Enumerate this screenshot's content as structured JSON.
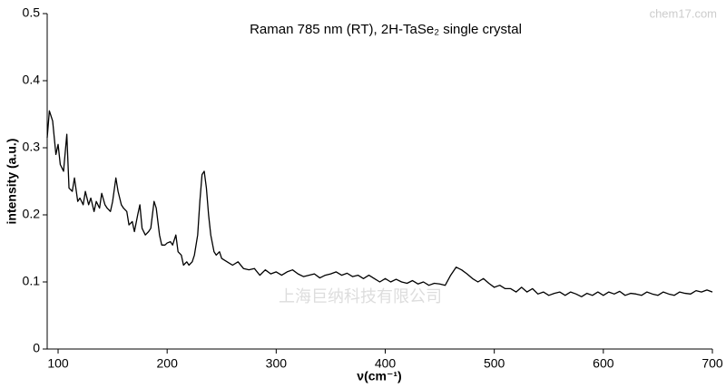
{
  "chart_data": {
    "type": "line",
    "title": "Raman 785 nm (RT), 2H-TaSe₂ single crystal",
    "x_label": "ν(cm⁻¹)",
    "y_label": "intensity (a.u.)",
    "annotations": [
      "chem17.com",
      "上海巨纳科技有限公司"
    ],
    "xlim": [
      90,
      700
    ],
    "xticks": [
      100,
      200,
      300,
      400,
      500,
      600,
      700
    ],
    "ylim": [
      0,
      0.5
    ],
    "yticks": [
      0,
      0.1,
      0.2,
      0.3,
      0.4,
      0.5
    ],
    "grid": false,
    "x": [
      90,
      92,
      95,
      98,
      100,
      102,
      105,
      108,
      110,
      113,
      115,
      118,
      120,
      123,
      125,
      128,
      130,
      133,
      135,
      138,
      140,
      143,
      145,
      148,
      150,
      153,
      155,
      158,
      160,
      163,
      165,
      168,
      170,
      173,
      175,
      177,
      180,
      183,
      185,
      188,
      190,
      193,
      195,
      198,
      200,
      203,
      205,
      208,
      210,
      213,
      215,
      218,
      220,
      223,
      225,
      228,
      230,
      232,
      234,
      236,
      238,
      240,
      243,
      245,
      248,
      250,
      255,
      260,
      265,
      270,
      275,
      280,
      285,
      290,
      295,
      300,
      305,
      310,
      315,
      320,
      325,
      330,
      335,
      340,
      345,
      350,
      355,
      360,
      365,
      370,
      375,
      380,
      385,
      390,
      395,
      400,
      405,
      410,
      415,
      420,
      425,
      430,
      435,
      440,
      445,
      450,
      455,
      460,
      465,
      470,
      475,
      480,
      485,
      490,
      495,
      500,
      505,
      510,
      515,
      520,
      525,
      530,
      535,
      540,
      545,
      550,
      555,
      560,
      565,
      570,
      575,
      580,
      585,
      590,
      595,
      600,
      605,
      610,
      615,
      620,
      625,
      630,
      635,
      640,
      645,
      650,
      655,
      660,
      665,
      670,
      675,
      680,
      685,
      690,
      695,
      700
    ],
    "series": [
      {
        "name": "Raman",
        "color": "#000000",
        "values": [
          0.315,
          0.355,
          0.34,
          0.29,
          0.305,
          0.275,
          0.265,
          0.32,
          0.24,
          0.235,
          0.255,
          0.22,
          0.225,
          0.215,
          0.235,
          0.215,
          0.225,
          0.205,
          0.22,
          0.21,
          0.232,
          0.215,
          0.21,
          0.205,
          0.22,
          0.255,
          0.235,
          0.215,
          0.21,
          0.205,
          0.185,
          0.19,
          0.175,
          0.2,
          0.215,
          0.18,
          0.17,
          0.175,
          0.18,
          0.22,
          0.21,
          0.17,
          0.155,
          0.155,
          0.158,
          0.16,
          0.155,
          0.17,
          0.145,
          0.14,
          0.125,
          0.13,
          0.125,
          0.13,
          0.14,
          0.17,
          0.22,
          0.26,
          0.265,
          0.24,
          0.2,
          0.17,
          0.145,
          0.14,
          0.145,
          0.135,
          0.13,
          0.125,
          0.13,
          0.12,
          0.118,
          0.12,
          0.11,
          0.118,
          0.112,
          0.115,
          0.11,
          0.115,
          0.118,
          0.112,
          0.108,
          0.11,
          0.112,
          0.106,
          0.11,
          0.112,
          0.115,
          0.11,
          0.113,
          0.108,
          0.11,
          0.105,
          0.11,
          0.105,
          0.1,
          0.105,
          0.1,
          0.104,
          0.1,
          0.098,
          0.102,
          0.097,
          0.1,
          0.095,
          0.098,
          0.097,
          0.095,
          0.11,
          0.122,
          0.118,
          0.112,
          0.105,
          0.1,
          0.105,
          0.098,
          0.092,
          0.095,
          0.09,
          0.09,
          0.085,
          0.092,
          0.085,
          0.09,
          0.082,
          0.085,
          0.08,
          0.083,
          0.085,
          0.08,
          0.085,
          0.082,
          0.078,
          0.083,
          0.08,
          0.085,
          0.08,
          0.085,
          0.082,
          0.086,
          0.08,
          0.083,
          0.082,
          0.08,
          0.085,
          0.082,
          0.08,
          0.085,
          0.082,
          0.08,
          0.085,
          0.083,
          0.082,
          0.087,
          0.085,
          0.088,
          0.085
        ]
      }
    ]
  }
}
